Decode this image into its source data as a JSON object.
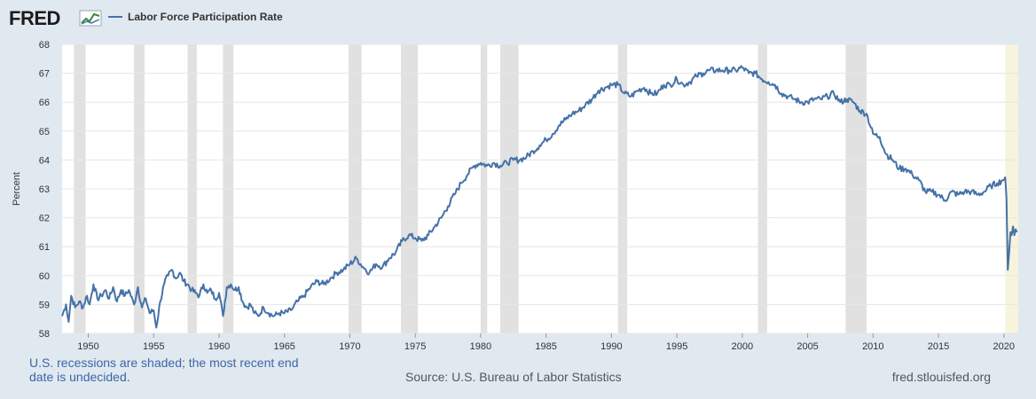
{
  "header": {
    "logo_text": "FRED",
    "legend_label": "Labor Force Participation Rate"
  },
  "footer": {
    "note": "U.S. recessions are shaded; the most recent end date is undecided.",
    "source": "Source: U.S. Bureau of Labor Statistics",
    "url": "fred.stlouisfed.org"
  },
  "colors": {
    "line": "#4572a7",
    "recession": "#e1e1e1",
    "undecided_recession": "#f7f4dd",
    "note_text": "#3a66a8"
  },
  "chart_data": {
    "type": "line",
    "title": "",
    "xlabel": "",
    "ylabel": "Percent",
    "ylim": [
      58,
      68
    ],
    "xlim": [
      1948.0,
      2021.1
    ],
    "y_ticks": [
      58,
      59,
      60,
      61,
      62,
      63,
      64,
      65,
      66,
      67,
      68
    ],
    "x_ticks": [
      1950,
      1955,
      1960,
      1965,
      1970,
      1975,
      1980,
      1985,
      1990,
      1995,
      2000,
      2005,
      2010,
      2015,
      2020
    ],
    "grid": "horizontal",
    "legend_position": "top-left",
    "recessions": [
      [
        1948.9,
        1949.8
      ],
      [
        1953.5,
        1954.3
      ],
      [
        1957.6,
        1958.3
      ],
      [
        1960.3,
        1961.1
      ],
      [
        1969.9,
        1970.9
      ],
      [
        1973.9,
        1975.2
      ],
      [
        1980.0,
        1980.5
      ],
      [
        1981.5,
        1982.9
      ],
      [
        1990.5,
        1991.2
      ],
      [
        2001.2,
        2001.9
      ],
      [
        2007.9,
        2009.5
      ]
    ],
    "recession_undecided": [
      2020.1,
      2021.1
    ],
    "series": [
      {
        "name": "Labor Force Participation Rate",
        "points": [
          [
            1948.0,
            58.6
          ],
          [
            1948.3,
            59.0
          ],
          [
            1948.5,
            58.4
          ],
          [
            1948.7,
            59.3
          ],
          [
            1949.0,
            58.9
          ],
          [
            1949.3,
            59.1
          ],
          [
            1949.6,
            58.9
          ],
          [
            1949.9,
            59.3
          ],
          [
            1950.1,
            59.0
          ],
          [
            1950.4,
            59.7
          ],
          [
            1950.7,
            59.2
          ],
          [
            1951.0,
            59.3
          ],
          [
            1951.3,
            59.5
          ],
          [
            1951.6,
            59.2
          ],
          [
            1951.9,
            59.6
          ],
          [
            1952.2,
            59.1
          ],
          [
            1952.5,
            59.5
          ],
          [
            1952.8,
            59.3
          ],
          [
            1953.1,
            59.5
          ],
          [
            1953.5,
            59.0
          ],
          [
            1953.8,
            59.6
          ],
          [
            1954.1,
            58.9
          ],
          [
            1954.4,
            59.2
          ],
          [
            1954.7,
            58.7
          ],
          [
            1955.0,
            58.8
          ],
          [
            1955.2,
            58.2
          ],
          [
            1955.5,
            59.1
          ],
          [
            1955.8,
            59.7
          ],
          [
            1956.1,
            60.0
          ],
          [
            1956.4,
            60.2
          ],
          [
            1956.7,
            59.9
          ],
          [
            1957.0,
            60.1
          ],
          [
            1957.3,
            59.8
          ],
          [
            1957.6,
            59.7
          ],
          [
            1957.9,
            59.5
          ],
          [
            1958.2,
            59.4
          ],
          [
            1958.5,
            59.3
          ],
          [
            1958.8,
            59.7
          ],
          [
            1959.1,
            59.4
          ],
          [
            1959.4,
            59.5
          ],
          [
            1959.7,
            59.2
          ],
          [
            1960.0,
            59.4
          ],
          [
            1960.3,
            58.6
          ],
          [
            1960.6,
            59.6
          ],
          [
            1960.9,
            59.7
          ],
          [
            1961.2,
            59.5
          ],
          [
            1961.5,
            59.6
          ],
          [
            1961.8,
            59.1
          ],
          [
            1962.1,
            58.9
          ],
          [
            1962.4,
            59.0
          ],
          [
            1962.7,
            58.7
          ],
          [
            1963.0,
            58.6
          ],
          [
            1963.4,
            58.9
          ],
          [
            1963.8,
            58.7
          ],
          [
            1964.2,
            58.6
          ],
          [
            1964.6,
            58.7
          ],
          [
            1965.0,
            58.7
          ],
          [
            1965.5,
            58.8
          ],
          [
            1966.0,
            59.1
          ],
          [
            1966.5,
            59.3
          ],
          [
            1967.0,
            59.6
          ],
          [
            1967.5,
            59.8
          ],
          [
            1968.0,
            59.7
          ],
          [
            1968.5,
            59.9
          ],
          [
            1969.0,
            60.1
          ],
          [
            1969.5,
            60.2
          ],
          [
            1970.0,
            60.4
          ],
          [
            1970.5,
            60.6
          ],
          [
            1971.0,
            60.3
          ],
          [
            1971.5,
            60.1
          ],
          [
            1972.0,
            60.4
          ],
          [
            1972.5,
            60.3
          ],
          [
            1973.0,
            60.6
          ],
          [
            1973.5,
            60.8
          ],
          [
            1974.0,
            61.2
          ],
          [
            1974.5,
            61.4
          ],
          [
            1975.0,
            61.3
          ],
          [
            1975.5,
            61.2
          ],
          [
            1976.0,
            61.4
          ],
          [
            1976.5,
            61.7
          ],
          [
            1977.0,
            62.0
          ],
          [
            1977.5,
            62.4
          ],
          [
            1978.0,
            62.8
          ],
          [
            1978.5,
            63.2
          ],
          [
            1979.0,
            63.5
          ],
          [
            1979.5,
            63.8
          ],
          [
            1980.0,
            63.9
          ],
          [
            1980.5,
            63.8
          ],
          [
            1981.0,
            63.9
          ],
          [
            1981.5,
            63.8
          ],
          [
            1982.0,
            63.9
          ],
          [
            1982.5,
            64.0
          ],
          [
            1983.0,
            64.0
          ],
          [
            1983.5,
            64.1
          ],
          [
            1984.0,
            64.3
          ],
          [
            1984.5,
            64.5
          ],
          [
            1985.0,
            64.7
          ],
          [
            1985.5,
            64.9
          ],
          [
            1986.0,
            65.2
          ],
          [
            1986.5,
            65.4
          ],
          [
            1987.0,
            65.6
          ],
          [
            1987.5,
            65.7
          ],
          [
            1988.0,
            65.9
          ],
          [
            1988.5,
            66.1
          ],
          [
            1989.0,
            66.4
          ],
          [
            1989.5,
            66.5
          ],
          [
            1990.0,
            66.6
          ],
          [
            1990.5,
            66.6
          ],
          [
            1991.0,
            66.3
          ],
          [
            1991.5,
            66.2
          ],
          [
            1992.0,
            66.4
          ],
          [
            1992.5,
            66.5
          ],
          [
            1993.0,
            66.3
          ],
          [
            1993.5,
            66.3
          ],
          [
            1994.0,
            66.6
          ],
          [
            1994.5,
            66.6
          ],
          [
            1995.0,
            66.8
          ],
          [
            1995.5,
            66.6
          ],
          [
            1996.0,
            66.7
          ],
          [
            1996.5,
            66.9
          ],
          [
            1997.0,
            67.0
          ],
          [
            1997.5,
            67.1
          ],
          [
            1998.0,
            67.1
          ],
          [
            1998.5,
            67.1
          ],
          [
            1999.0,
            67.1
          ],
          [
            1999.5,
            67.1
          ],
          [
            2000.0,
            67.2
          ],
          [
            2000.5,
            67.0
          ],
          [
            2001.0,
            67.0
          ],
          [
            2001.5,
            66.8
          ],
          [
            2002.0,
            66.7
          ],
          [
            2002.5,
            66.6
          ],
          [
            2003.0,
            66.3
          ],
          [
            2003.5,
            66.2
          ],
          [
            2004.0,
            66.1
          ],
          [
            2004.5,
            66.0
          ],
          [
            2005.0,
            66.0
          ],
          [
            2005.5,
            66.1
          ],
          [
            2006.0,
            66.1
          ],
          [
            2006.5,
            66.2
          ],
          [
            2007.0,
            66.3
          ],
          [
            2007.5,
            66.0
          ],
          [
            2008.0,
            66.1
          ],
          [
            2008.5,
            66.0
          ],
          [
            2009.0,
            65.7
          ],
          [
            2009.5,
            65.6
          ],
          [
            2010.0,
            64.9
          ],
          [
            2010.5,
            64.8
          ],
          [
            2011.0,
            64.2
          ],
          [
            2011.5,
            64.0
          ],
          [
            2012.0,
            63.7
          ],
          [
            2012.5,
            63.7
          ],
          [
            2013.0,
            63.5
          ],
          [
            2013.5,
            63.3
          ],
          [
            2014.0,
            62.9
          ],
          [
            2014.5,
            62.9
          ],
          [
            2015.0,
            62.8
          ],
          [
            2015.5,
            62.6
          ],
          [
            2016.0,
            62.9
          ],
          [
            2016.5,
            62.8
          ],
          [
            2017.0,
            62.9
          ],
          [
            2017.5,
            62.9
          ],
          [
            2018.0,
            62.8
          ],
          [
            2018.5,
            62.9
          ],
          [
            2019.0,
            63.1
          ],
          [
            2019.5,
            63.2
          ],
          [
            2019.9,
            63.3
          ],
          [
            2020.1,
            63.4
          ],
          [
            2020.2,
            62.7
          ],
          [
            2020.3,
            60.2
          ],
          [
            2020.4,
            60.8
          ],
          [
            2020.5,
            61.5
          ],
          [
            2020.6,
            61.4
          ],
          [
            2020.7,
            61.7
          ],
          [
            2020.8,
            61.4
          ],
          [
            2020.9,
            61.6
          ],
          [
            2021.0,
            61.5
          ]
        ]
      }
    ]
  }
}
